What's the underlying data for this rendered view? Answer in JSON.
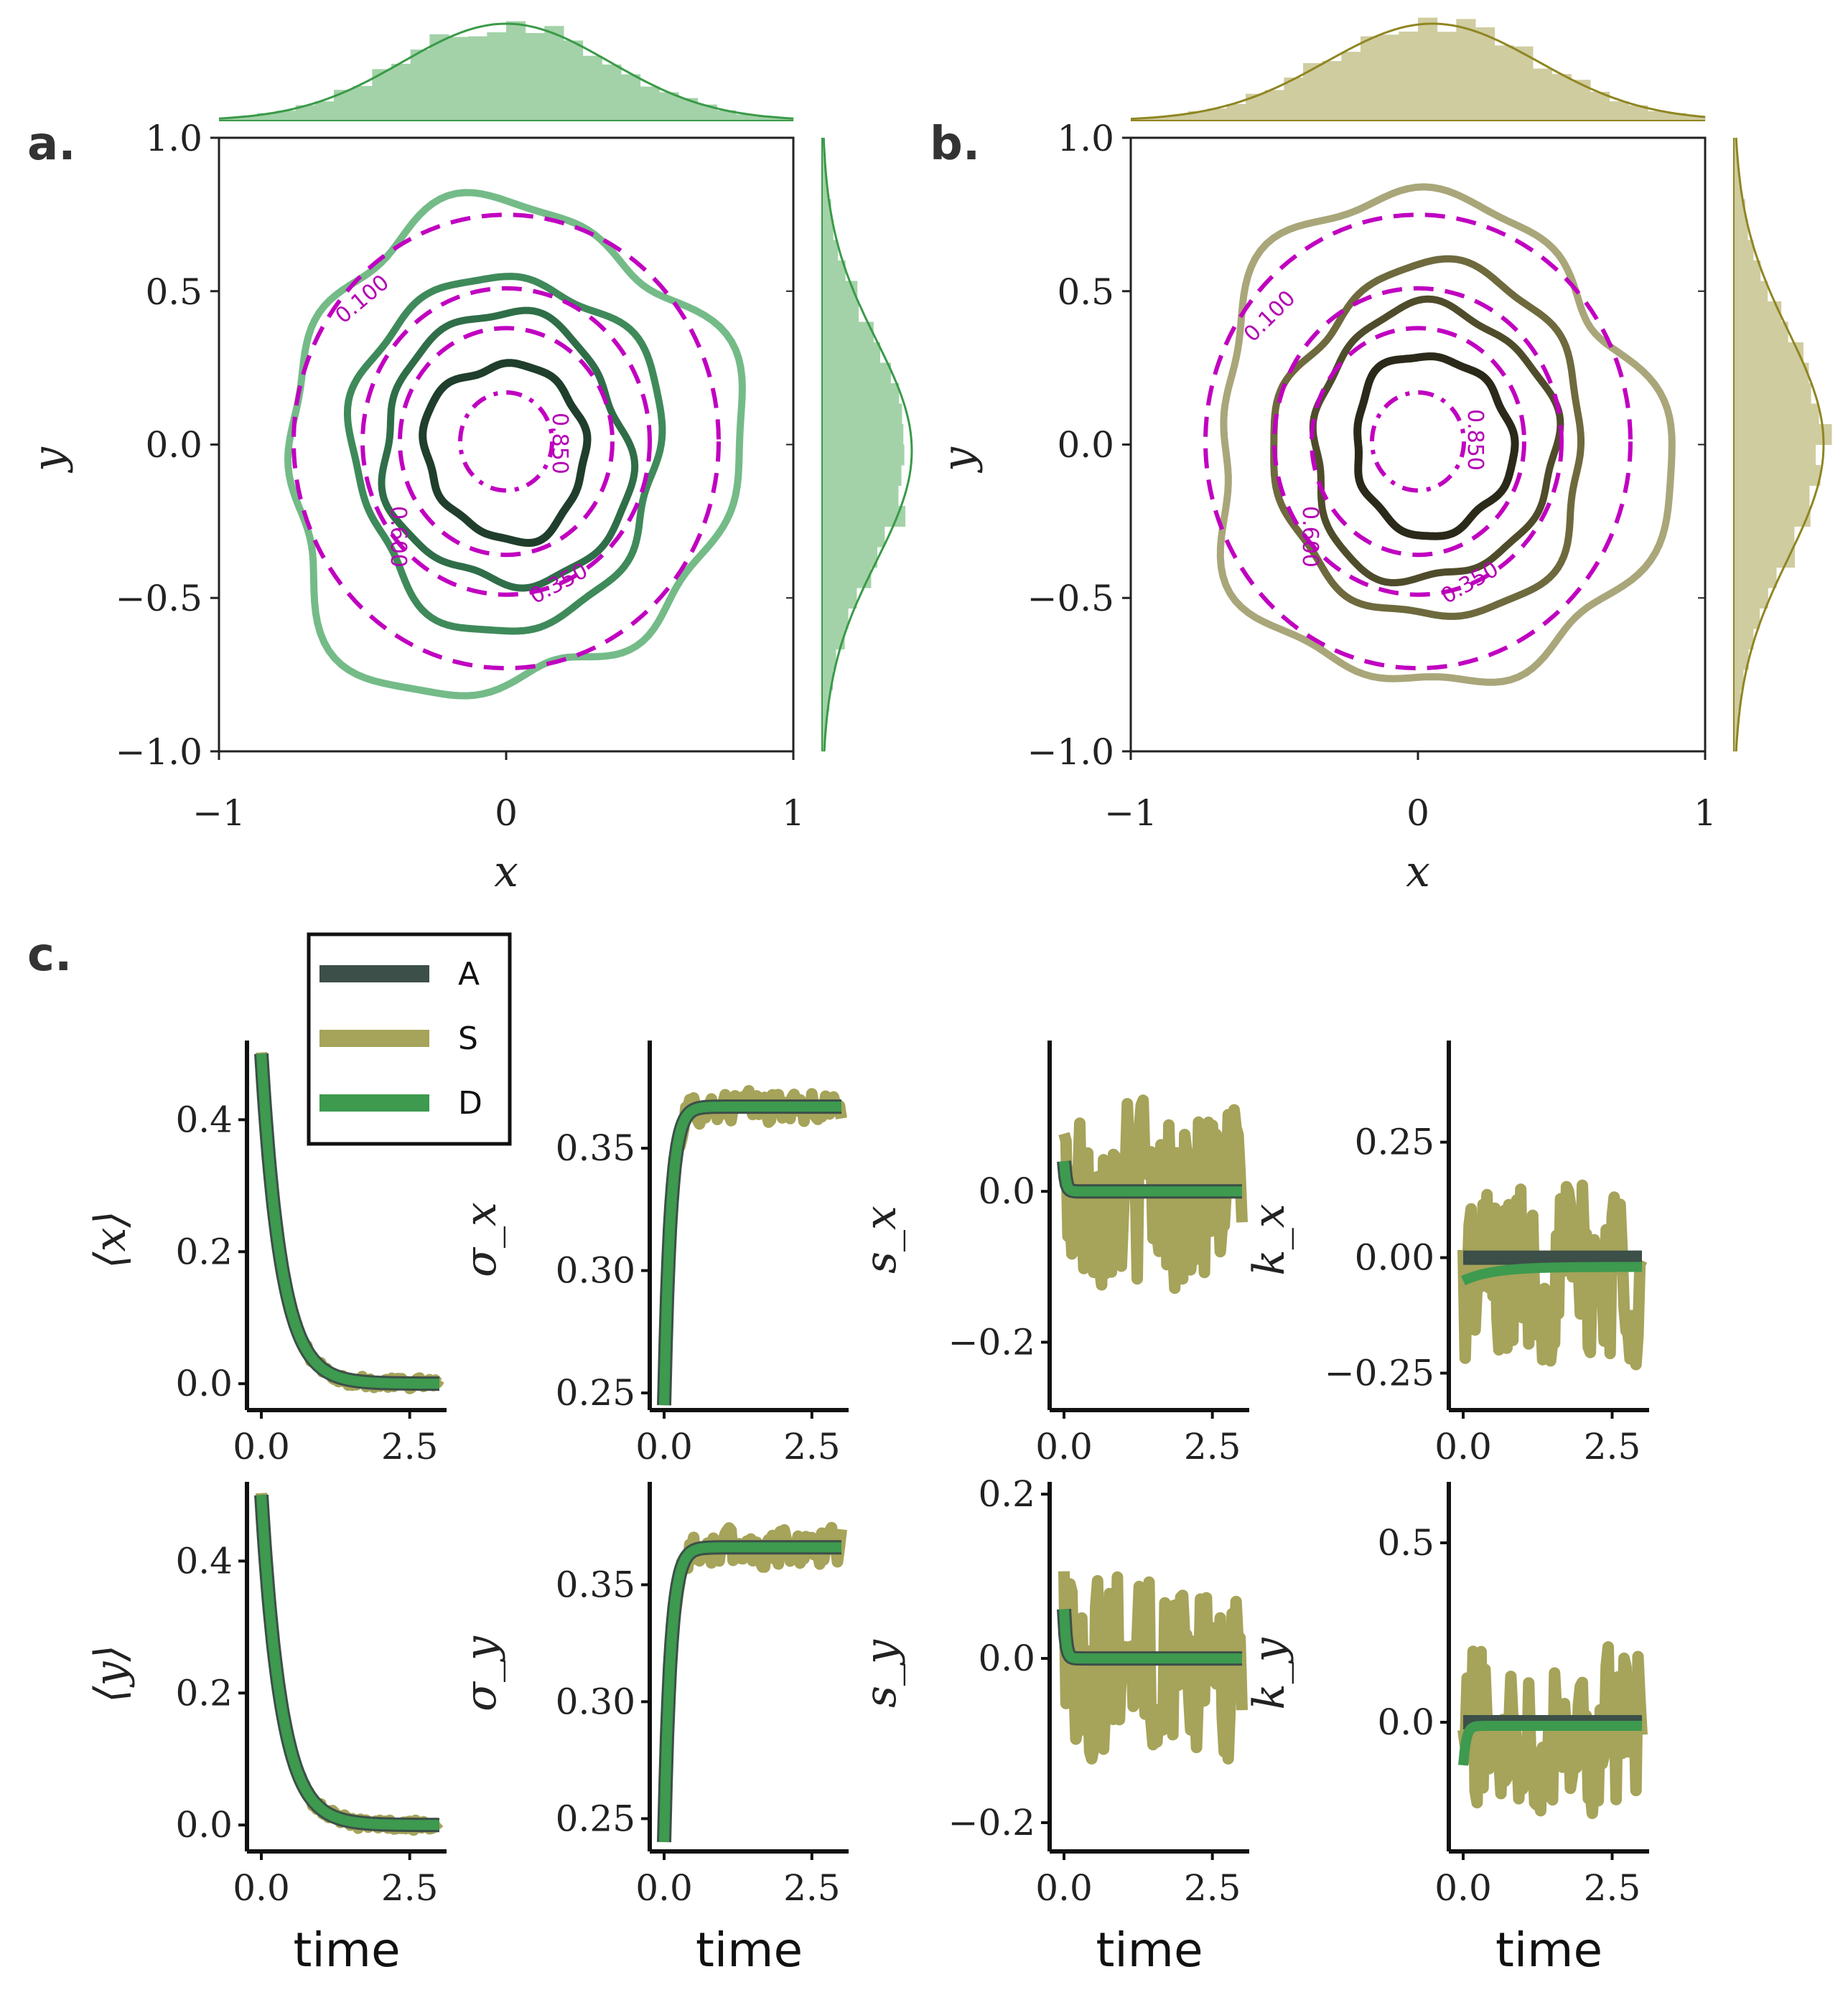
{
  "panel_labels": [
    "a.",
    "b.",
    "c."
  ],
  "colors": {
    "A": "#3c4f48",
    "S": "#a6a35a",
    "D": "#3d9a4f",
    "a_hist": "#a3d2a8",
    "a_line": "#3a9a48",
    "b_hist": "#cfcca0",
    "b_line": "#8f8622",
    "analytic": "#c000c0"
  },
  "chart_data": [
    {
      "type": "contour",
      "panel": "a.",
      "xlabel": "x",
      "ylabel": "y",
      "xlim": [
        -1,
        1
      ],
      "ylim": [
        -1,
        1
      ],
      "xticks": [
        "−1",
        "0",
        "1"
      ],
      "yticks": [
        "−1.0",
        "−0.5",
        "0.0",
        "0.5",
        "1.0"
      ],
      "contour_labels": [
        "0.100",
        "0.350",
        "0.600",
        "0.850"
      ],
      "contour_levels": [
        0.1,
        0.35,
        0.6,
        0.85
      ],
      "center": [
        0.0,
        -0.02
      ],
      "marginal_std": 0.36
    },
    {
      "type": "contour",
      "panel": "b.",
      "xlabel": "x",
      "ylabel": "y",
      "xlim": [
        -1,
        1
      ],
      "ylim": [
        -1,
        1
      ],
      "xticks": [
        "−1",
        "0",
        "1"
      ],
      "yticks": [
        "−1.0",
        "−0.5",
        "0.0",
        "0.5",
        "1.0"
      ],
      "contour_labels": [
        "0.100",
        "0.350",
        "0.600",
        "0.850"
      ],
      "contour_levels": [
        0.1,
        0.35,
        0.6,
        0.85
      ],
      "center": [
        0.05,
        0.0
      ],
      "marginal_std": 0.37
    },
    {
      "type": "line",
      "panel": "c.",
      "legend": [
        "A",
        "S",
        "D"
      ],
      "xlabel": "time",
      "xlim": [
        0,
        3
      ],
      "xticks": [
        "0.0",
        "2.5"
      ],
      "subplots": [
        {
          "ylabel": "⟨x⟩",
          "ylim": [
            -0.04,
            0.52
          ],
          "yticks": [
            "0.0",
            "0.2",
            "0.4"
          ],
          "start": 0.5,
          "end": 0.0,
          "rate": 3.0,
          "noise": 0.008
        },
        {
          "ylabel": "σ_x",
          "ylim": [
            0.243,
            0.394
          ],
          "yticks": [
            "0.25",
            "0.30",
            "0.35"
          ],
          "start": 0.245,
          "end": 0.367,
          "rate": 9.0,
          "noise": 0.006
        },
        {
          "ylabel": "s_x",
          "ylim": [
            -0.29,
            0.2
          ],
          "yticks": [
            "−0.2",
            "0.0"
          ],
          "start": 0.04,
          "end": 0.0,
          "rate": 30.0,
          "noise": 0.12
        },
        {
          "ylabel": "k_x",
          "ylim": [
            -0.33,
            0.47
          ],
          "yticks": [
            "−0.25",
            "0.00",
            "0.25"
          ],
          "start": -0.05,
          "end": -0.02,
          "rate": 2.0,
          "noise": 0.2
        },
        {
          "ylabel": "⟨y⟩",
          "ylim": [
            -0.04,
            0.52
          ],
          "yticks": [
            "0.0",
            "0.2",
            "0.4"
          ],
          "start": 0.5,
          "end": 0.0,
          "rate": 3.0,
          "noise": 0.008
        },
        {
          "ylabel": "σ_y",
          "ylim": [
            0.236,
            0.394
          ],
          "yticks": [
            "0.25",
            "0.30",
            "0.35"
          ],
          "start": 0.24,
          "end": 0.366,
          "rate": 9.0,
          "noise": 0.008
        },
        {
          "ylabel": "s_y",
          "ylim": [
            -0.235,
            0.215
          ],
          "yticks": [
            "−0.2",
            "0.0",
            "0.2"
          ],
          "start": 0.06,
          "end": 0.0,
          "rate": 30.0,
          "noise": 0.11
        },
        {
          "ylabel": "k_y",
          "ylim": [
            -0.36,
            0.67
          ],
          "yticks": [
            "0.0",
            "0.5"
          ],
          "start": -0.12,
          "end": -0.01,
          "rate": 20.0,
          "noise": 0.22
        }
      ]
    }
  ]
}
